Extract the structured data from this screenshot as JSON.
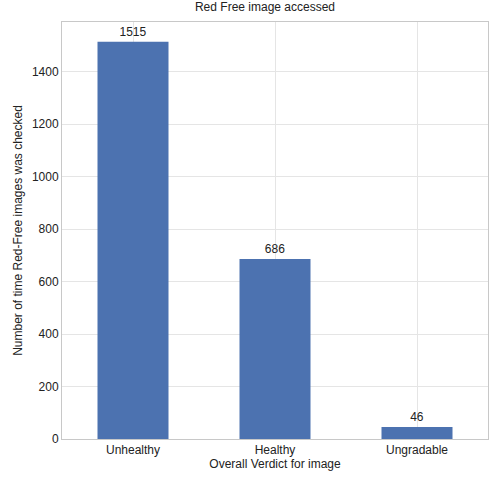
{
  "chart_data": {
    "type": "bar",
    "title": "Red Free image accessed",
    "x_label": "Overall Verdict for image",
    "y_label": "Number of time Red-Free images was checked",
    "categories": [
      "Unhealthy",
      "Healthy",
      "Ungradable"
    ],
    "values": [
      1515,
      686,
      46
    ],
    "color": "#4c72b0",
    "ylim": [
      0,
      1590
    ],
    "yticks": [
      0,
      200,
      400,
      600,
      800,
      1000,
      1200,
      1400
    ],
    "grid": true,
    "data_labels": true
  }
}
